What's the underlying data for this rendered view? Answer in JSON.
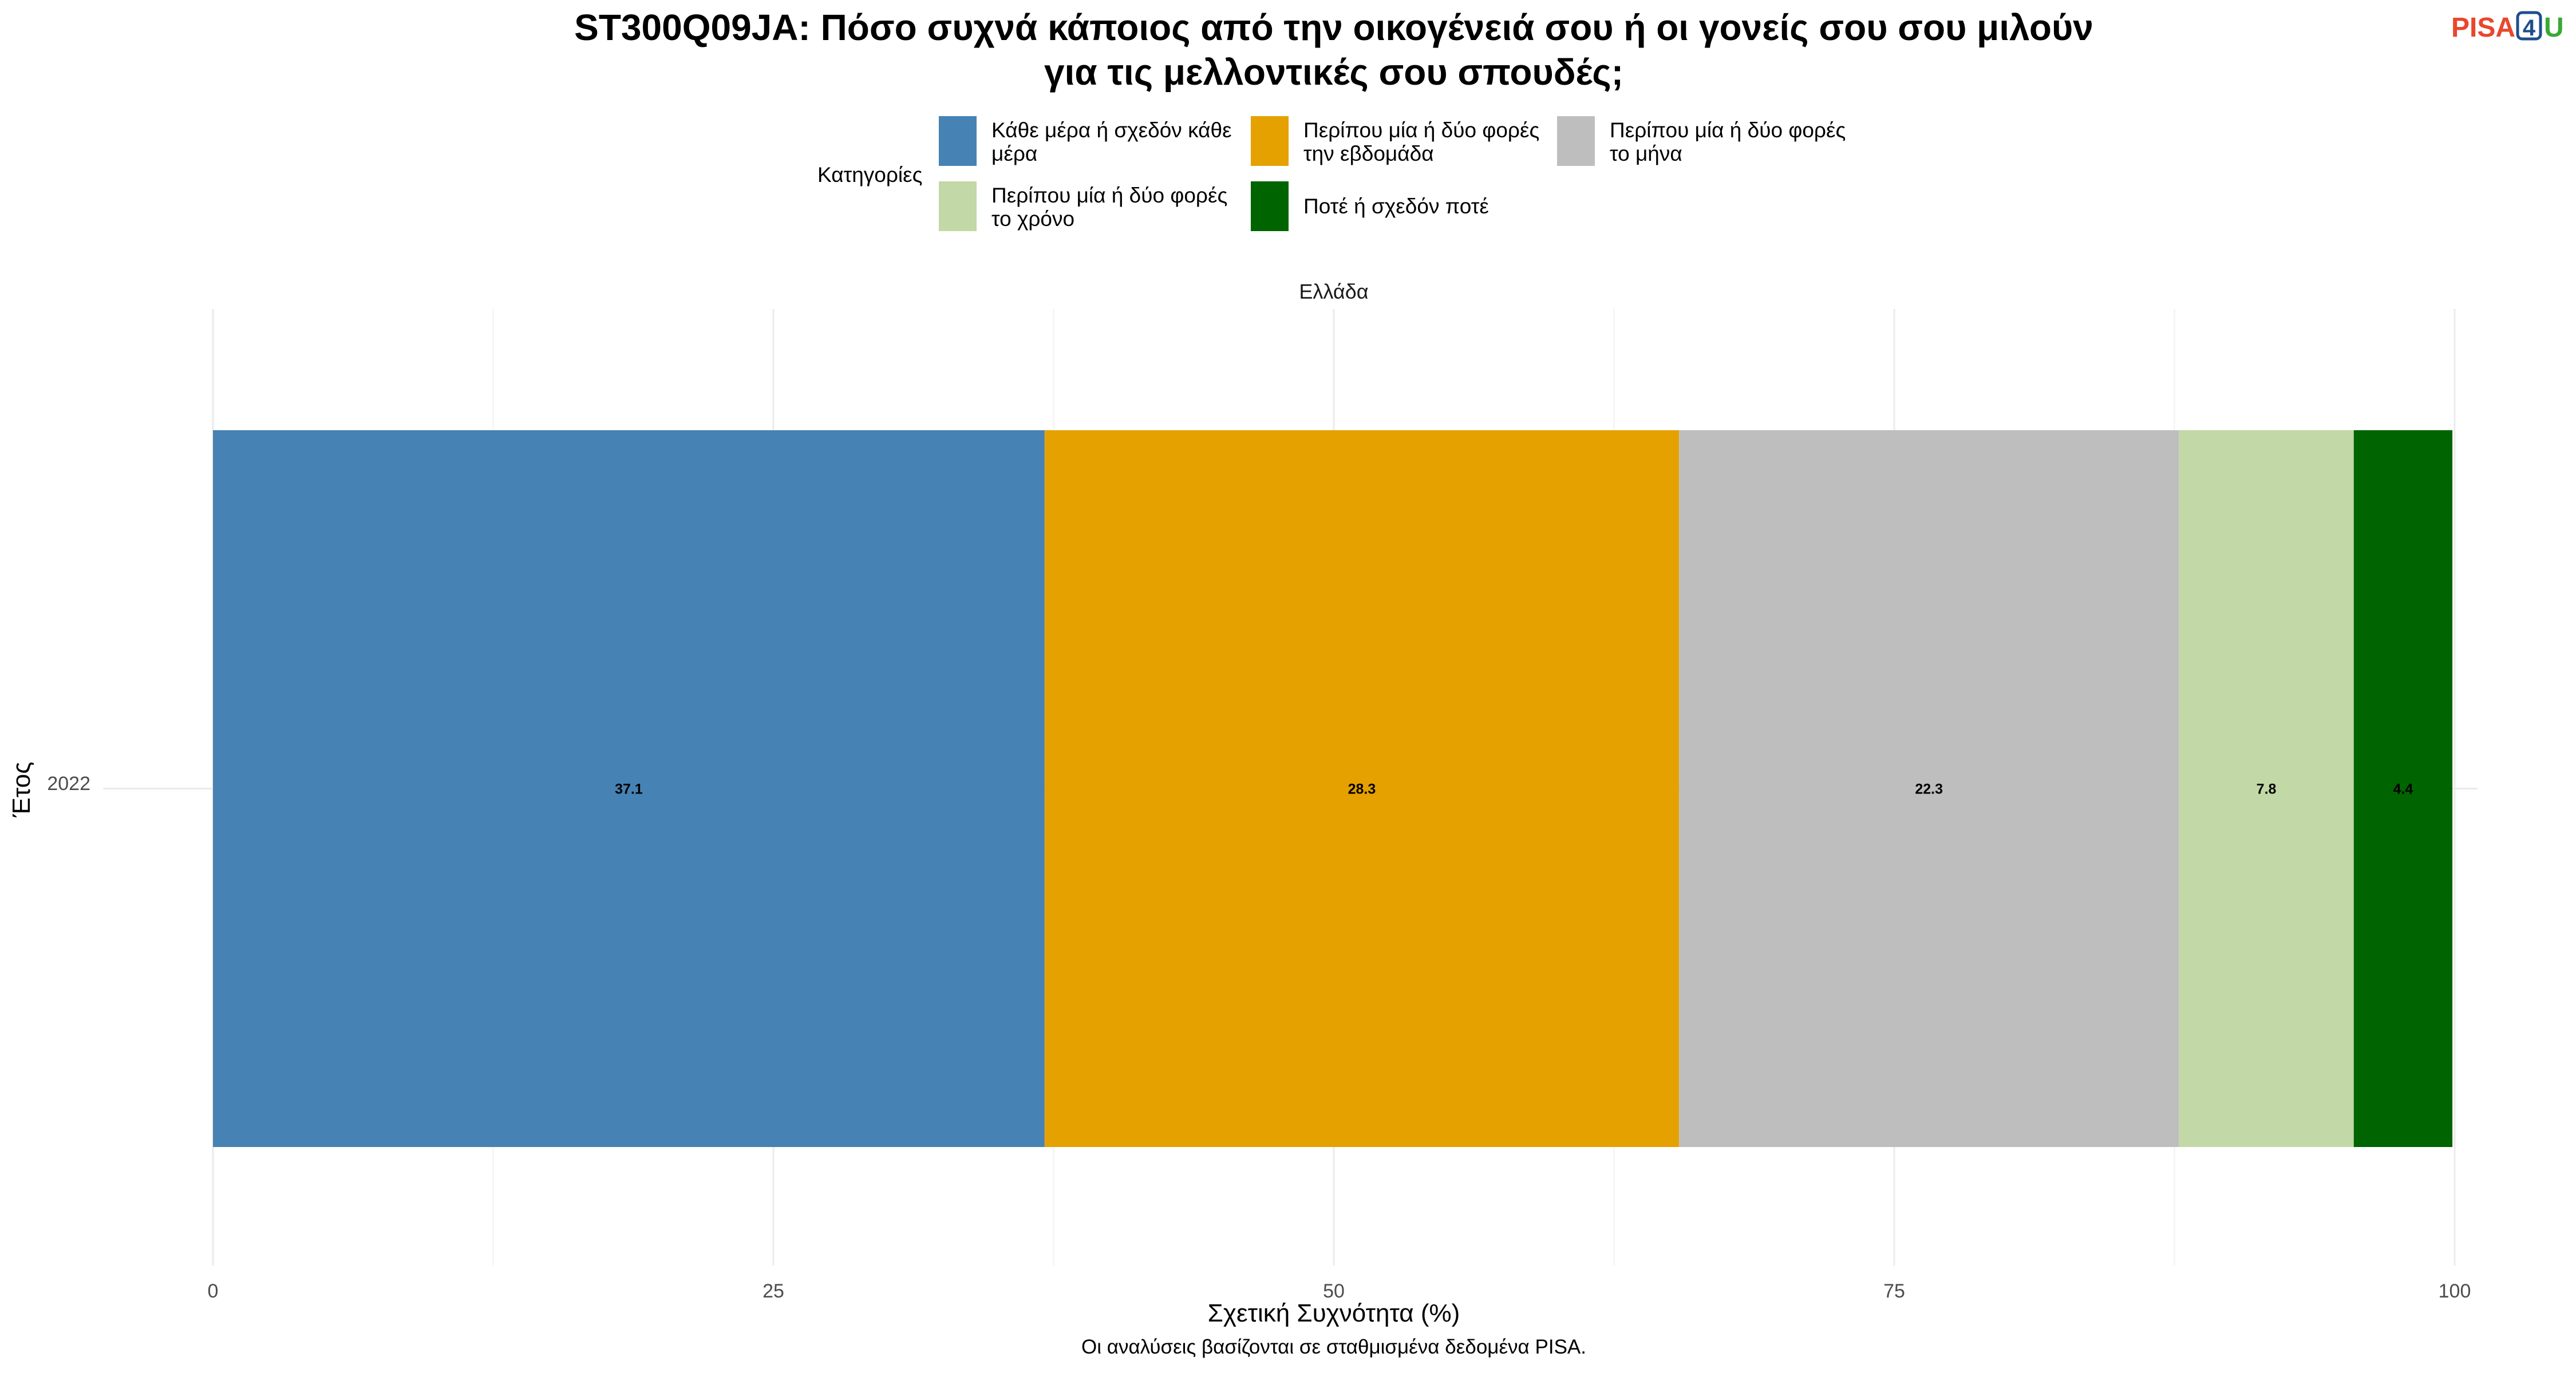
{
  "title_lines": [
    "ST300Q09JA: Πόσο συχνά κάποιος από την οικογένειά σου ή οι γονείς σου σου μιλούν",
    "για τις μελλοντικές σου σπουδές;"
  ],
  "logo": {
    "pisa": "PISA",
    "four": "4",
    "u": "U"
  },
  "legend": {
    "title": "Κατηγορίες",
    "items": [
      {
        "lines": [
          "Κάθε μέρα ή σχεδόν κάθε",
          "μέρα"
        ],
        "color": "#4682b4"
      },
      {
        "lines": [
          "Περίπου μία ή δύο φορές",
          "την εβδομάδα"
        ],
        "color": "#e5a100"
      },
      {
        "lines": [
          "Περίπου μία ή δύο φορές",
          "το μήνα"
        ],
        "color": "#bebebe"
      },
      {
        "lines": [
          "Περίπου μία ή δύο φορές",
          "το χρόνο"
        ],
        "color": "#c2d8a6"
      },
      {
        "lines": [
          "Ποτέ ή σχεδόν ποτέ"
        ],
        "color": "#006400"
      }
    ]
  },
  "caption": "Οι αναλύσεις βασίζονται σε σταθμισμένα δεδομένα PISA.",
  "chart_data": {
    "type": "bar",
    "orientation": "horizontal",
    "stacked": true,
    "facet": "Ελλάδα",
    "categories": [
      "2022"
    ],
    "series": [
      {
        "name": "Κάθε μέρα ή σχεδόν κάθε μέρα",
        "values": [
          37.1
        ],
        "labels": [
          "37.1"
        ],
        "color": "#4682b4"
      },
      {
        "name": "Περίπου μία ή δύο φορές την εβδομάδα",
        "values": [
          28.3
        ],
        "labels": [
          "28.3"
        ],
        "color": "#e5a100"
      },
      {
        "name": "Περίπου μία ή δύο φορές το μήνα",
        "values": [
          22.3
        ],
        "labels": [
          "22.3"
        ],
        "color": "#bebebe"
      },
      {
        "name": "Περίπου μία ή δύο φορές το χρόνο",
        "values": [
          7.8
        ],
        "labels": [
          "7.8"
        ],
        "color": "#c2d8a6"
      },
      {
        "name": "Ποτέ ή σχεδόν ποτέ",
        "values": [
          4.4
        ],
        "labels": [
          "4.4"
        ],
        "color": "#006400"
      }
    ],
    "xlabel": "Σχετική Συχνότητα (%)",
    "ylabel": "Έτος",
    "xlim": [
      0,
      100
    ],
    "xticks": [
      0,
      25,
      50,
      75,
      100
    ],
    "xtick_labels": [
      "0",
      "25",
      "50",
      "75",
      "100"
    ],
    "grid": true,
    "legend_position": "top"
  }
}
